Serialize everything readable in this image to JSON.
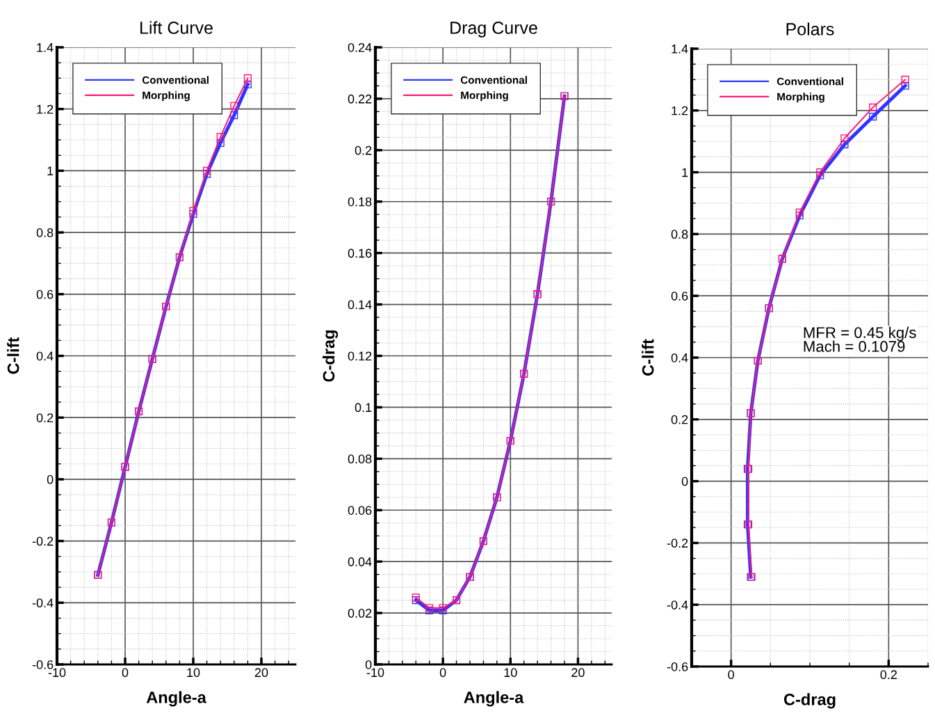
{
  "chart_data": [
    {
      "type": "line",
      "title": "Lift Curve",
      "xlabel": "Angle-a",
      "ylabel": "C-lift",
      "x": [
        -4,
        -2,
        0,
        2,
        4,
        6,
        8,
        10,
        12,
        14,
        16,
        18
      ],
      "series": [
        {
          "name": "Conventional",
          "color": "#3333ff",
          "values": [
            -0.31,
            -0.14,
            0.04,
            0.22,
            0.39,
            0.56,
            0.72,
            0.86,
            0.99,
            1.09,
            1.18,
            1.28
          ]
        },
        {
          "name": "Morphing",
          "color": "#ff1a75",
          "values": [
            -0.31,
            -0.14,
            0.04,
            0.22,
            0.39,
            0.56,
            0.72,
            0.87,
            1.0,
            1.11,
            1.21,
            1.3
          ]
        }
      ],
      "xlim": [
        -10,
        25
      ],
      "xticks": [
        -10,
        0,
        10,
        20
      ],
      "ylim": [
        -0.6,
        1.4
      ],
      "yticks": [
        -0.6,
        -0.4,
        -0.2,
        0,
        0.2,
        0.4,
        0.6,
        0.8,
        1,
        1.2,
        1.4
      ],
      "grid": true,
      "legend": "top left",
      "marker": "square",
      "line_style": "solid"
    },
    {
      "type": "line",
      "title": "Drag Curve",
      "xlabel": "Angle-a",
      "ylabel": "C-drag",
      "x": [
        -4,
        -2,
        0,
        2,
        4,
        6,
        8,
        10,
        12,
        14,
        16,
        18
      ],
      "series": [
        {
          "name": "Conventional",
          "color": "#3333ff",
          "values": [
            0.025,
            0.021,
            0.021,
            0.025,
            0.034,
            0.048,
            0.065,
            0.087,
            0.113,
            0.144,
            0.18,
            0.221
          ]
        },
        {
          "name": "Morphing",
          "color": "#ff1a75",
          "values": [
            0.026,
            0.022,
            0.022,
            0.025,
            0.034,
            0.048,
            0.065,
            0.087,
            0.113,
            0.144,
            0.18,
            0.221
          ]
        }
      ],
      "xlim": [
        -10,
        25
      ],
      "xticks": [
        -10,
        0,
        10,
        20
      ],
      "ylim": [
        0,
        0.24
      ],
      "yticks": [
        0,
        0.02,
        0.04,
        0.06,
        0.08,
        0.1,
        0.12,
        0.14,
        0.16,
        0.18,
        0.2,
        0.22,
        0.24
      ],
      "grid": true,
      "legend": "top left",
      "marker": "square",
      "line_style": "solid"
    },
    {
      "type": "line",
      "title": "Polars",
      "xlabel": "C-drag",
      "ylabel": "C-lift",
      "series": [
        {
          "name": "Conventional",
          "color": "#3333ff",
          "x": [
            0.025,
            0.021,
            0.021,
            0.025,
            0.034,
            0.048,
            0.065,
            0.087,
            0.113,
            0.144,
            0.18,
            0.221
          ],
          "values": [
            -0.31,
            -0.14,
            0.04,
            0.22,
            0.39,
            0.56,
            0.72,
            0.86,
            0.99,
            1.09,
            1.18,
            1.28
          ]
        },
        {
          "name": "Morphing",
          "color": "#ff1a75",
          "x": [
            0.026,
            0.022,
            0.022,
            0.025,
            0.034,
            0.048,
            0.065,
            0.087,
            0.113,
            0.144,
            0.18,
            0.221
          ],
          "values": [
            -0.31,
            -0.14,
            0.04,
            0.22,
            0.39,
            0.56,
            0.72,
            0.87,
            1.0,
            1.11,
            1.21,
            1.3
          ]
        }
      ],
      "xlim": [
        -0.05,
        0.25
      ],
      "xticks": [
        0,
        0.2
      ],
      "ylim": [
        -0.6,
        1.4
      ],
      "yticks": [
        -0.6,
        -0.4,
        -0.2,
        0,
        0.2,
        0.4,
        0.6,
        0.8,
        1,
        1.2,
        1.4
      ],
      "annotations": [
        "MFR = 0.45 kg/s\nMach = 0.1079"
      ],
      "grid": true,
      "legend": "top left",
      "marker": "square",
      "line_style": "solid"
    }
  ]
}
